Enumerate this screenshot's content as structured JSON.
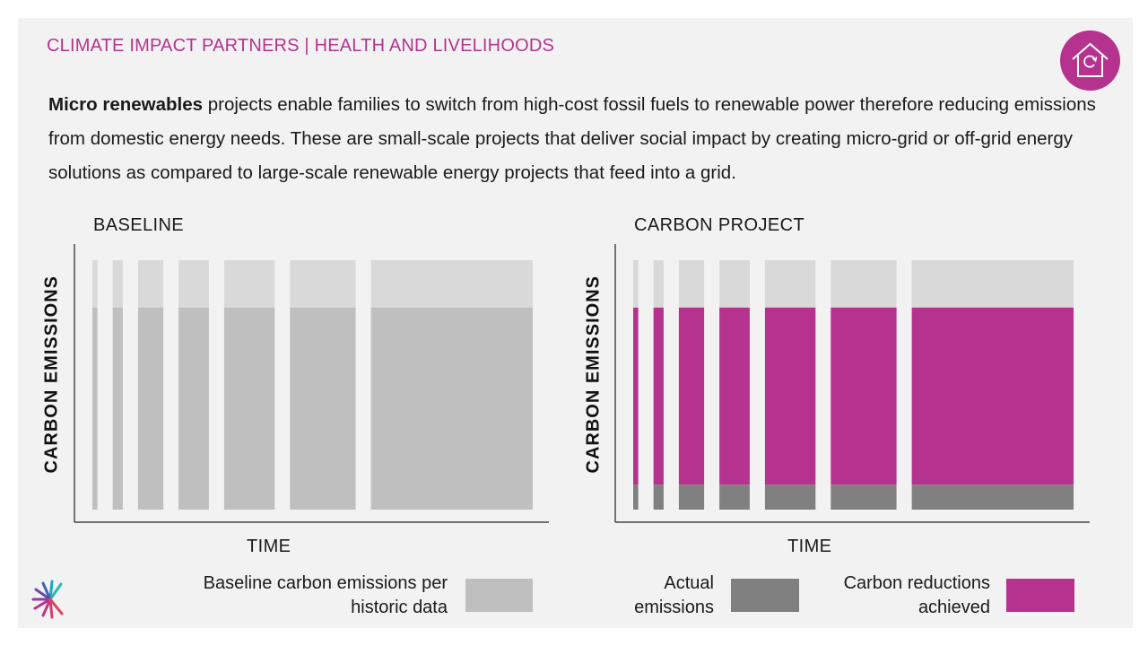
{
  "header": "CLIMATE IMPACT PARTNERS | HEALTH AND LIVELIHOODS",
  "intro": {
    "bold": "Micro renewables",
    "text": " projects enable families to switch from high-cost fossil fuels to renewable power therefore reducing emissions from domestic energy needs. These are small-scale projects that deliver social impact by creating micro-grid or off-grid energy solutions as compared to large-scale renewable energy projects that feed into a grid."
  },
  "icons": {
    "badge": "home-refresh-icon",
    "logo": "climate-impact-partners-logo"
  },
  "colors": {
    "accent": "#b5338e",
    "baseline_bar": "#bfbfbf",
    "bar_top": "#d9d9d9",
    "actual_emissions": "#808080",
    "panel_bg": "#f2f2f2"
  },
  "chart_data": [
    {
      "type": "bar",
      "title": "BASELINE",
      "xlabel": "TIME",
      "ylabel": "CARBON EMISSIONS",
      "bar_widths": [
        1,
        2,
        5,
        6,
        10,
        13,
        32
      ],
      "baseline_level": 0.81,
      "series": [
        {
          "name": "Baseline carbon emissions per historic data",
          "values": [
            0.81,
            0.81,
            0.81,
            0.81,
            0.81,
            0.81,
            0.81
          ]
        }
      ],
      "legend": [
        {
          "label": "Baseline carbon emissions per historic data",
          "color": "#bfbfbf"
        }
      ]
    },
    {
      "type": "bar",
      "title": "CARBON PROJECT",
      "xlabel": "TIME",
      "ylabel": "CARBON EMISSIONS",
      "bar_widths": [
        1,
        2,
        5,
        6,
        10,
        13,
        32
      ],
      "baseline_level": 0.81,
      "series": [
        {
          "name": "Actual emissions",
          "values": [
            0.1,
            0.1,
            0.1,
            0.1,
            0.1,
            0.1,
            0.1
          ]
        },
        {
          "name": "Carbon reductions achieved",
          "values": [
            0.71,
            0.71,
            0.71,
            0.71,
            0.71,
            0.71,
            0.71
          ]
        }
      ],
      "legend": [
        {
          "label": "Actual emissions",
          "color": "#808080"
        },
        {
          "label": "Carbon reductions achieved",
          "color": "#b5338e"
        }
      ]
    }
  ]
}
